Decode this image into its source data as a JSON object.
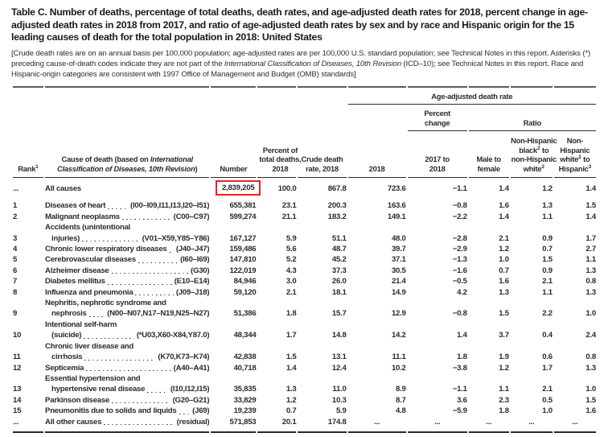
{
  "title": "Table C. Number of deaths, percentage of total deaths, death rates, and age-adjusted death rates for 2018, percent change in age-adjusted death rates in 2018 from 2017, and ratio of age-adjusted death rates by sex and by race and Hispanic origin for the 15 leading causes of death for the total population in 2018: United States",
  "note": {
    "pre": "[Crude death rates are on an annual basis per 100,000 population; age-adjusted rates are per 100,000 U.S. standard population; see Technical Notes in this report. Asterisks (*) preceding cause-of-death codes indicate they are not part of the ",
    "italic": "International Classification of Diseases, 10th Revision",
    "post": " (ICD–10); see Technical Notes in this report. Race and Hispanic-origin categories are consistent with 1997 Office of Management and Budget (OMB) standards]"
  },
  "header": {
    "age_adjusted": "Age-adjusted death rate",
    "percent_change": "Percent change",
    "ratio": "Ratio",
    "rank": {
      "text": "Rank",
      "sup": "1"
    },
    "cause": {
      "pre": "Cause of death (based on ",
      "italic": "International Classification of Diseases, 10th Revision",
      "post": ")"
    },
    "number": "Number",
    "percent_of_total": "Percent of total deaths, 2018",
    "crude_rate": "Crude death rate, 2018",
    "year_2018": "2018",
    "change_2017_2018": "2017 to 2018",
    "male_female": "Male to female",
    "black_white": {
      "t1": "Non-Hispanic black",
      "s1": "2",
      "t2": " to non-Hispanic white",
      "s2": "2"
    },
    "white_hispanic": {
      "t1": "Non-Hispanic white",
      "s1": "2",
      "t2": " to Hispanic",
      "s2": "3"
    }
  },
  "highlight_color": "#e8221d",
  "rows": [
    {
      "rank": "...",
      "cause": [
        "All causes"
      ],
      "code": "",
      "values": [
        "2,839,205",
        "100.0",
        "867.8",
        "723.6",
        "−1.1",
        "1.4",
        "1.2",
        "1.4"
      ],
      "boxed": true,
      "gap_below": true
    },
    {
      "rank": "1",
      "cause": [
        "Diseases of heart"
      ],
      "code": "(I00–I09,I11,I13,I20–I51)",
      "values": [
        "655,381",
        "23.1",
        "200.3",
        "163.6",
        "−0.8",
        "1.6",
        "1.3",
        "1.5"
      ]
    },
    {
      "rank": "2",
      "cause": [
        "Malignant neoplasms"
      ],
      "code": "(C00–C97)",
      "values": [
        "599,274",
        "21.1",
        "183.2",
        "149.1",
        "−2.2",
        "1.4",
        "1.1",
        "1.4"
      ]
    },
    {
      "rank": "3",
      "cause": [
        "Accidents (unintentional",
        "injuries)"
      ],
      "code": "(V01–X59,Y85–Y86)",
      "values": [
        "167,127",
        "5.9",
        "51.1",
        "48.0",
        "−2.8",
        "2.1",
        "0.9",
        "1.7"
      ]
    },
    {
      "rank": "4",
      "cause": [
        "Chronic lower respiratory diseases"
      ],
      "code": "(J40–J47)",
      "values": [
        "159,486",
        "5.6",
        "48.7",
        "39.7",
        "−2.9",
        "1.2",
        "0.7",
        "2.7"
      ]
    },
    {
      "rank": "5",
      "cause": [
        "Cerebrovascular diseases"
      ],
      "code": "(I60–I69)",
      "values": [
        "147,810",
        "5.2",
        "45.2",
        "37.1",
        "−1.3",
        "1.0",
        "1.5",
        "1.1"
      ]
    },
    {
      "rank": "6",
      "cause": [
        "Alzheimer disease"
      ],
      "code": "(G30)",
      "values": [
        "122,019",
        "4.3",
        "37.3",
        "30.5",
        "−1.6",
        "0.7",
        "0.9",
        "1.3"
      ]
    },
    {
      "rank": "7",
      "cause": [
        "Diabetes mellitus"
      ],
      "code": "(E10–E14)",
      "values": [
        "84,946",
        "3.0",
        "26.0",
        "21.4",
        "−0.5",
        "1.6",
        "2.1",
        "0.8"
      ]
    },
    {
      "rank": "8",
      "cause": [
        "Influenza and pneumonia"
      ],
      "code": "(J09–J18)",
      "values": [
        "59,120",
        "2.1",
        "18.1",
        "14.9",
        "4.2",
        "1.3",
        "1.1",
        "1.3"
      ]
    },
    {
      "rank": "9",
      "cause": [
        "Nephritis, nephrotic syndrome and",
        "nephrosis"
      ],
      "code": "(N00–N07,N17–N19,N25–N27)",
      "values": [
        "51,386",
        "1.8",
        "15.7",
        "12.9",
        "−0.8",
        "1.5",
        "2.2",
        "1.0"
      ]
    },
    {
      "rank": "10",
      "cause": [
        "Intentional self-harm",
        "(suicide)"
      ],
      "code": "(*U03,X60-X84,Y87.0)",
      "values": [
        "48,344",
        "1.7",
        "14.8",
        "14.2",
        "1.4",
        "3.7",
        "0.4",
        "2.4"
      ]
    },
    {
      "rank": "11",
      "cause": [
        "Chronic liver disease and",
        "cirrhosis"
      ],
      "code": "(K70,K73–K74)",
      "values": [
        "42,838",
        "1.5",
        "13.1",
        "11.1",
        "1.8",
        "1.9",
        "0.6",
        "0.8"
      ]
    },
    {
      "rank": "12",
      "cause": [
        "Septicemia"
      ],
      "code": "(A40–A41)",
      "values": [
        "40,718",
        "1.4",
        "12.4",
        "10.2",
        "−3.8",
        "1.2",
        "1.7",
        "1.3"
      ]
    },
    {
      "rank": "13",
      "cause": [
        "Essential hypertension and",
        "hypertensive renal disease"
      ],
      "code": "(I10,I12,I15)",
      "values": [
        "35,835",
        "1.3",
        "11.0",
        "8.9",
        "−1.1",
        "1.1",
        "2.1",
        "1.0"
      ]
    },
    {
      "rank": "14",
      "cause": [
        "Parkinson disease"
      ],
      "code": "(G20–G21)",
      "values": [
        "33,829",
        "1.2",
        "10.3",
        "8.7",
        "3.6",
        "2.3",
        "0.5",
        "1.5"
      ]
    },
    {
      "rank": "15",
      "cause": [
        "Pneumonitis due to solids and liquids"
      ],
      "code": "(J69)",
      "values": [
        "19,239",
        "0.7",
        "5.9",
        "4.8",
        "−5.9",
        "1.8",
        "1.0",
        "1.6"
      ]
    },
    {
      "rank": "...",
      "cause": [
        "All other causes"
      ],
      "code": "(residual)",
      "values": [
        "571,853",
        "20.1",
        "174.8",
        "...",
        "...",
        "...",
        "...",
        "..."
      ]
    }
  ]
}
